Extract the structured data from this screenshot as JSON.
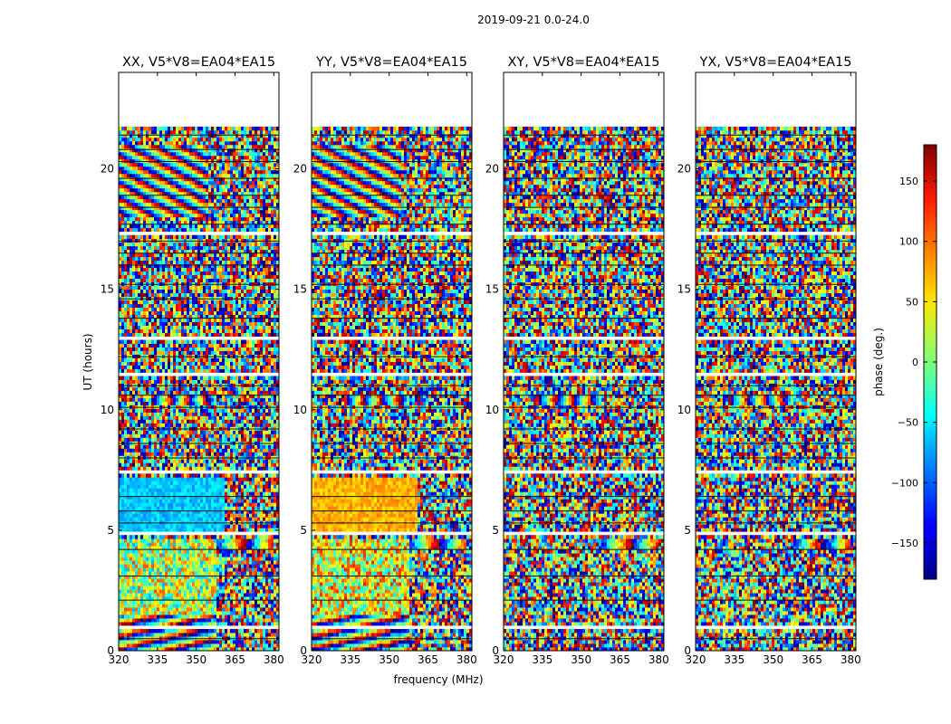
{
  "figure": {
    "suptitle": "2019-09-21 0.0-24.0"
  },
  "chart_data": {
    "type": "heatmap",
    "suptitle": "2019-09-21 0.0-24.0",
    "xlabel": "frequency (MHz)",
    "ylabel": "UT (hours)",
    "xlim": [
      320,
      382
    ],
    "ylim": [
      0,
      24
    ],
    "xticks": [
      "320",
      "335",
      "350",
      "365",
      "380"
    ],
    "yticks": [
      "0",
      "5",
      "10",
      "15",
      "20"
    ],
    "panels": [
      {
        "title": "XX, V5*V8=EA04*EA15",
        "pol": "XX"
      },
      {
        "title": "YY, V5*V8=EA04*EA15",
        "pol": "YY"
      },
      {
        "title": "XY, V5*V8=EA04*EA15",
        "pol": "XY"
      },
      {
        "title": "YX, V5*V8=EA04*EA15",
        "pol": "YX"
      }
    ],
    "data_gaps_hours": [
      [
        0.95,
        1.05
      ],
      [
        3.4,
        3.5
      ],
      [
        4.75,
        4.95
      ],
      [
        7.3,
        7.55
      ],
      [
        11.45,
        11.6
      ],
      [
        12.85,
        13.05
      ],
      [
        17.2,
        17.4
      ],
      [
        21.7,
        22.4
      ]
    ],
    "colorbar": {
      "label": "phase (deg.)",
      "vmin": -180,
      "vmax": 180,
      "ticks": [
        "150",
        "100",
        "50",
        "0",
        "−50",
        "−100",
        "−150"
      ],
      "tick_values": [
        150,
        100,
        50,
        0,
        -50,
        -100,
        -150
      ],
      "colormap": "jet"
    }
  }
}
